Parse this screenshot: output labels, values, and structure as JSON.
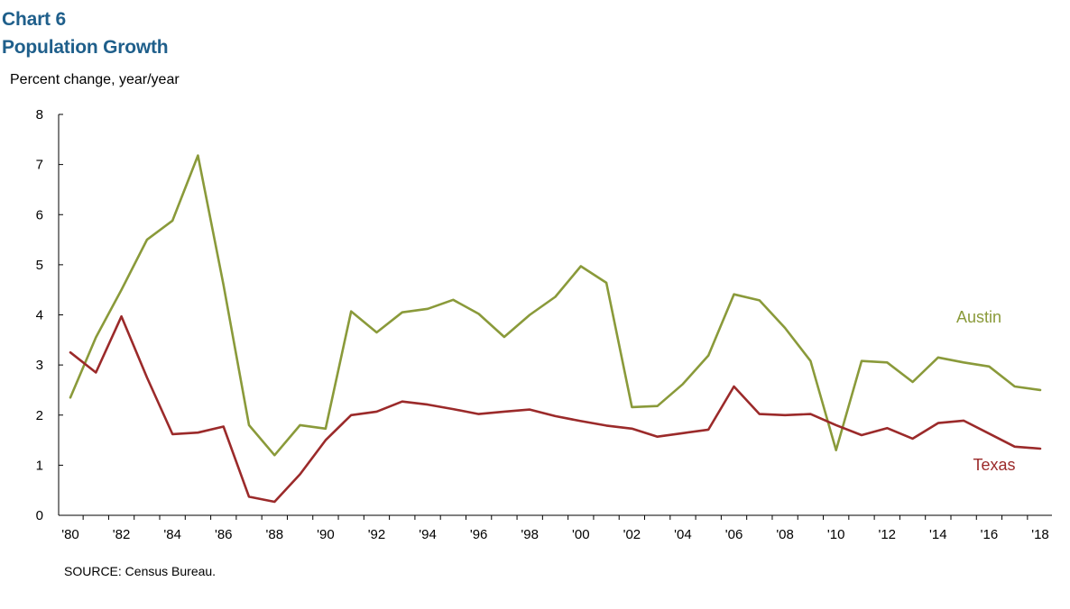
{
  "header": {
    "chart_label": "Chart 6",
    "title": "Population Growth"
  },
  "ylabel": "Percent change, year/year",
  "source": "SOURCE:  Census Bureau.",
  "colors": {
    "title": "#1f5f8b",
    "austin": "#8a9a3a",
    "texas": "#9b2a2a"
  },
  "chart_data": {
    "type": "line",
    "title": "Population Growth",
    "xlabel": "",
    "ylabel": "Percent change, year/year",
    "ylim": [
      0,
      8
    ],
    "yticks": [
      0,
      1,
      2,
      3,
      4,
      5,
      6,
      7,
      8
    ],
    "xlim": [
      1980,
      2018
    ],
    "xtick_years": [
      1980,
      1982,
      1984,
      1986,
      1988,
      1990,
      1992,
      1994,
      1996,
      1998,
      2000,
      2002,
      2004,
      2006,
      2008,
      2010,
      2012,
      2014,
      2016,
      2018
    ],
    "xtick_labels": [
      "'80",
      "'82",
      "'84",
      "'86",
      "'88",
      "'90",
      "'92",
      "'94",
      "'96",
      "'98",
      "'00",
      "'02",
      "'04",
      "'06",
      "'08",
      "'10",
      "'12",
      "'14",
      "'16",
      "'18"
    ],
    "grid": false,
    "legend": "inline labels",
    "x": [
      1980,
      1981,
      1982,
      1983,
      1984,
      1985,
      1986,
      1987,
      1988,
      1989,
      1990,
      1991,
      1992,
      1993,
      1994,
      1995,
      1996,
      1997,
      1998,
      1999,
      2000,
      2001,
      2002,
      2003,
      2004,
      2005,
      2006,
      2007,
      2008,
      2009,
      2010,
      2011,
      2012,
      2013,
      2014,
      2015,
      2016,
      2017,
      2018
    ],
    "series": [
      {
        "name": "Austin",
        "values": [
          2.35,
          3.55,
          4.5,
          5.5,
          5.88,
          7.18,
          4.6,
          1.8,
          1.2,
          1.8,
          1.73,
          4.07,
          3.65,
          4.05,
          4.12,
          4.3,
          4.02,
          3.56,
          4.0,
          4.36,
          4.97,
          4.64,
          2.16,
          2.18,
          2.62,
          3.19,
          4.41,
          4.29,
          3.74,
          3.08,
          1.3,
          3.08,
          3.05,
          2.66,
          3.15,
          3.05,
          2.97,
          2.57,
          2.5
        ],
        "color": "#8a9a3a"
      },
      {
        "name": "Texas",
        "values": [
          3.25,
          2.85,
          3.97,
          2.75,
          1.62,
          1.65,
          1.77,
          0.37,
          0.27,
          0.82,
          1.5,
          2.0,
          2.07,
          2.27,
          2.21,
          2.12,
          2.02,
          2.07,
          2.11,
          1.98,
          1.88,
          1.79,
          1.73,
          1.57,
          1.64,
          1.71,
          2.57,
          2.02,
          2.0,
          2.02,
          1.8,
          1.6,
          1.74,
          1.53,
          1.84,
          1.89,
          1.63,
          1.37,
          1.33
        ],
        "color": "#9b2a2a"
      }
    ]
  }
}
